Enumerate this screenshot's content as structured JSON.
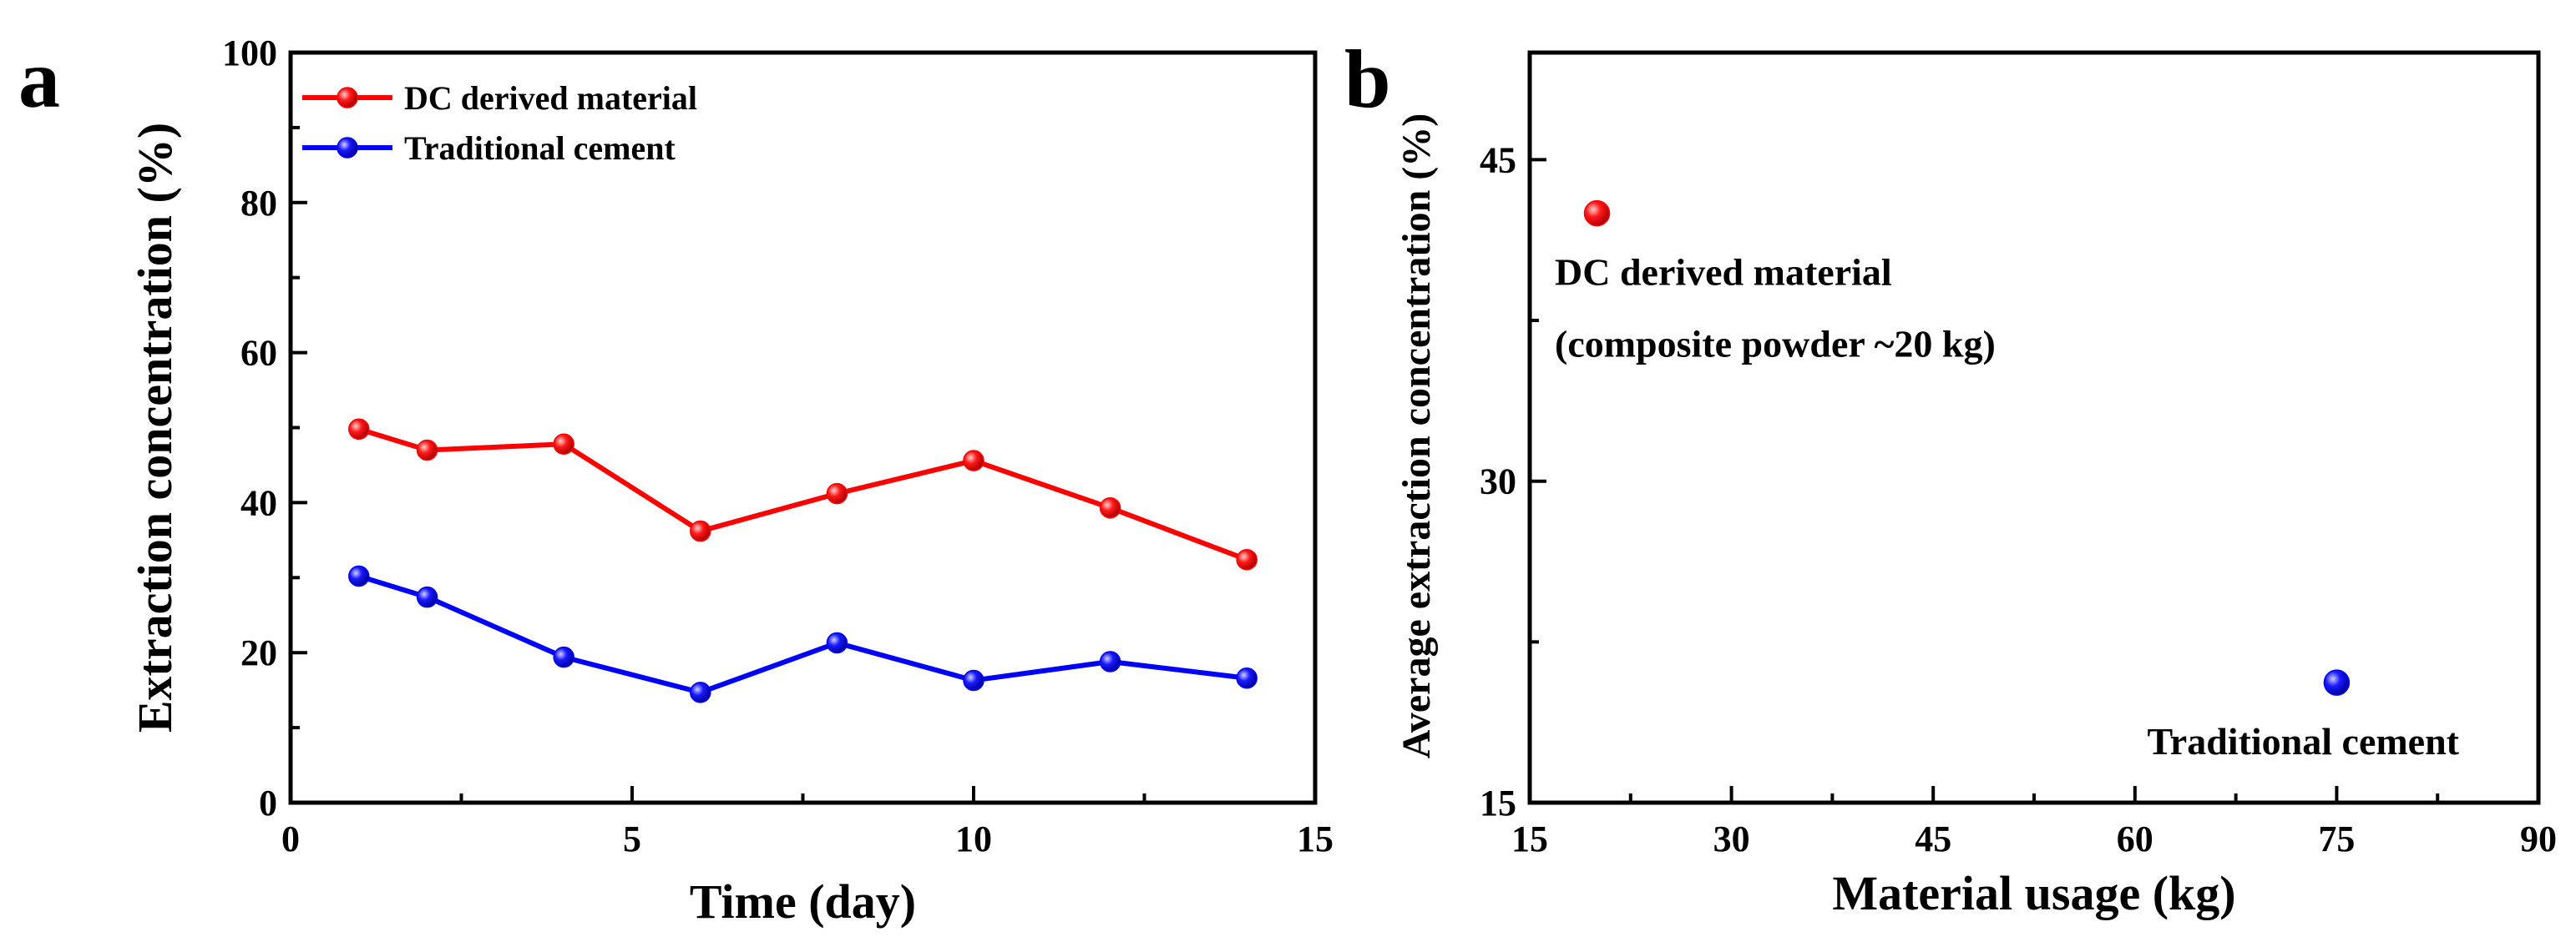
{
  "panels": {
    "a": {
      "letter": "a"
    },
    "b": {
      "letter": "b"
    }
  },
  "chart_data": [
    {
      "panel": "a",
      "type": "line",
      "xlabel": "Time (day)",
      "ylabel": "Extraction concentration  (%)",
      "xlim": [
        0,
        15
      ],
      "ylim": [
        0,
        100
      ],
      "xticks": [
        0,
        5,
        10,
        15
      ],
      "yticks": [
        0,
        20,
        40,
        60,
        80,
        100
      ],
      "grid": false,
      "legend": "top-left",
      "series": [
        {
          "name": "DC derived material",
          "color": "#ff0000",
          "x": [
            1,
            2,
            4,
            6,
            8,
            10,
            12,
            14
          ],
          "y": [
            49.8,
            47.0,
            47.8,
            36.2,
            41.2,
            45.6,
            39.3,
            32.4
          ]
        },
        {
          "name": "Traditional cement",
          "color": "#0000ff",
          "x": [
            1,
            2,
            4,
            6,
            8,
            10,
            12,
            14
          ],
          "y": [
            30.2,
            27.4,
            19.4,
            14.7,
            21.3,
            16.3,
            18.8,
            16.6
          ]
        }
      ]
    },
    {
      "panel": "b",
      "type": "scatter",
      "xlabel": "Material usage (kg)",
      "ylabel": "Average extraction concentration (%)",
      "xlim": [
        15,
        90
      ],
      "ylim": [
        15,
        50
      ],
      "xticks": [
        15,
        30,
        45,
        60,
        75,
        90
      ],
      "yticks": [
        15,
        30,
        45
      ],
      "grid": false,
      "points": [
        {
          "x": 20,
          "y": 42.5,
          "color": "#ff0000",
          "label_lines": [
            "DC derived material",
            "(composite powder ~20 kg)"
          ]
        },
        {
          "x": 75,
          "y": 20.6,
          "color": "#0000ff",
          "label_lines": [
            "Traditional cement"
          ]
        }
      ]
    }
  ]
}
